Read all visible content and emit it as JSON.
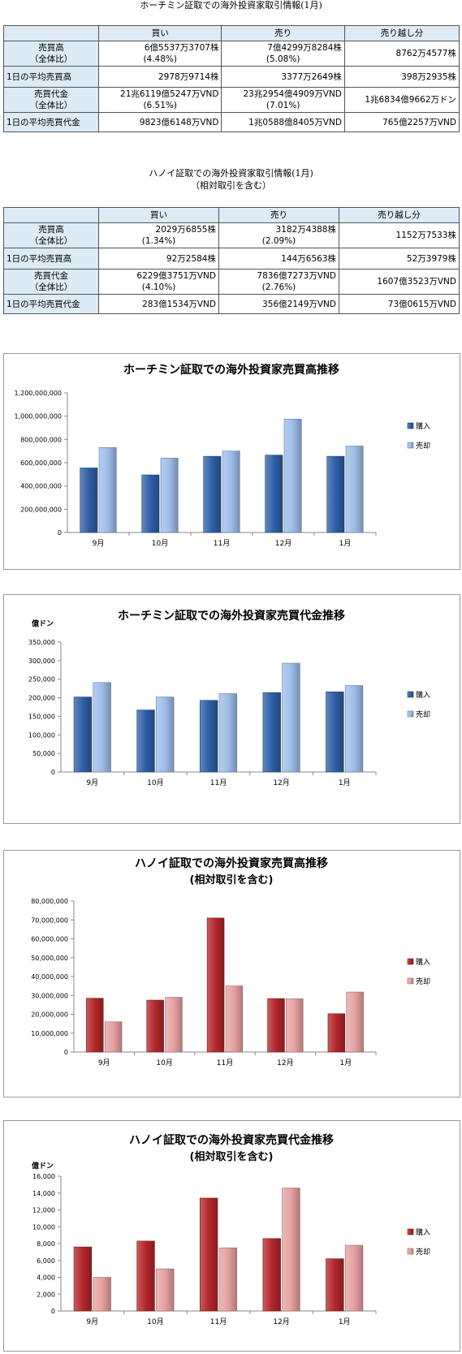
{
  "hcm_table": {
    "title": "ホーチミン証取での海外投資家取引情報(1月)",
    "headers": [
      "",
      "買い",
      "売り",
      "売り越し分"
    ],
    "rows": [
      {
        "label1": "売買高",
        "label2": "（全体比）",
        "buy": "6億5537万3707株",
        "buy_pct": "(4.48%)",
        "sell": "7億4299万8284株",
        "sell_pct": "(5.08%)",
        "net": "8762万4577株"
      },
      {
        "label1": "1日の平均売買高",
        "buy": "2978万9714株",
        "sell": "3377万2649株",
        "net": "398万2935株"
      },
      {
        "label1": "売買代金",
        "label2": "（全体比）",
        "buy": "21兆6119億5247万VND",
        "buy_pct": "(6.51%)",
        "sell": "23兆2954億4909万VND",
        "sell_pct": "(7.01%)",
        "net": "1兆6834億9662万ドン"
      },
      {
        "label1": "1日の平均売買代金",
        "buy": "9823億6148万VND",
        "sell": "1兆0588億8405万VND",
        "net": "765億2257万VND"
      }
    ]
  },
  "hn_table": {
    "title": "ハノイ証取での海外投資家取引情報(1月)",
    "subtitle": "（相対取引を含む）",
    "headers": [
      "",
      "買い",
      "売り",
      "売り越し分"
    ],
    "rows": [
      {
        "label1": "売買高",
        "label2": "（全体比）",
        "buy": "2029万6855株",
        "buy_pct": "(1.34%)",
        "sell": "3182万4388株",
        "sell_pct": "(2.09%)",
        "net": "1152万7533株"
      },
      {
        "label1": "1日の平均売買高",
        "buy": "92万2584株",
        "sell": "144万6563株",
        "net": "52万3979株"
      },
      {
        "label1": "売買代金",
        "label2": "（全体比）",
        "buy": "6229億3751万VND",
        "buy_pct": "(4.10%)",
        "sell": "7836億7273万VND",
        "sell_pct": "(2.76%)",
        "net": "1607億3523万VND"
      },
      {
        "label1": "1日の平均売買代金",
        "buy": "283億1534万VND",
        "sell": "356億2149万VND",
        "net": "73億0615万VND"
      }
    ]
  },
  "colors": {
    "buy_blue": "#2f5fa7",
    "sell_blue": "#9dbde9",
    "buy_red": "#b3262a",
    "sell_red": "#e6a1a1"
  },
  "chart_data": [
    {
      "type": "bar",
      "title": "ホーチミン証取での海外投資家売買高推移",
      "unit_label": "",
      "categories": [
        "9月",
        "10月",
        "11月",
        "12月",
        "1月"
      ],
      "series": [
        {
          "name": "購入",
          "values": [
            555000000,
            495000000,
            655000000,
            665000000,
            655000000
          ]
        },
        {
          "name": "売却",
          "values": [
            730000000,
            640000000,
            700000000,
            975000000,
            743000000
          ]
        }
      ],
      "yticks": [
        "0",
        "200,000,000",
        "400,000,000",
        "600,000,000",
        "800,000,000",
        "1,000,000,000",
        "1,200,000,000"
      ],
      "ylim": [
        0,
        1200000000
      ],
      "palette": "blue",
      "legend_position": "right"
    },
    {
      "type": "bar",
      "title": "ホーチミン証取での海外投資家売買代金推移",
      "unit_label": "億ドン",
      "categories": [
        "9月",
        "10月",
        "11月",
        "12月",
        "1月"
      ],
      "series": [
        {
          "name": "購入",
          "values": [
            202000,
            167000,
            193000,
            214000,
            216000
          ]
        },
        {
          "name": "売却",
          "values": [
            241000,
            202000,
            211000,
            293000,
            233000
          ]
        }
      ],
      "yticks": [
        "0",
        "50,000",
        "100,000",
        "150,000",
        "200,000",
        "250,000",
        "300,000",
        "350,000"
      ],
      "ylim": [
        0,
        350000
      ],
      "palette": "blue",
      "legend_position": "right"
    },
    {
      "type": "bar",
      "title": "ハノイ証取での海外投資家売買高推移",
      "subtitle": "(相対取引を含む)",
      "unit_label": "",
      "categories": [
        "9月",
        "10月",
        "11月",
        "12月",
        "1月"
      ],
      "series": [
        {
          "name": "購入",
          "values": [
            28500000,
            27500000,
            71000000,
            28300000,
            20300000
          ]
        },
        {
          "name": "売却",
          "values": [
            16000000,
            29000000,
            35000000,
            28200000,
            31800000
          ]
        }
      ],
      "yticks": [
        "0",
        "10,000,000",
        "20,000,000",
        "30,000,000",
        "40,000,000",
        "50,000,000",
        "60,000,000",
        "70,000,000",
        "80,000,000"
      ],
      "ylim": [
        0,
        80000000
      ],
      "palette": "red",
      "legend_position": "right"
    },
    {
      "type": "bar",
      "title": "ハノイ証取での海外投資家売買代金推移",
      "subtitle": "(相対取引を含む)",
      "unit_label": "億ドン",
      "categories": [
        "9月",
        "10月",
        "11月",
        "12月",
        "1月"
      ],
      "series": [
        {
          "name": "購入",
          "values": [
            7600,
            8300,
            13400,
            8600,
            6200
          ]
        },
        {
          "name": "売却",
          "values": [
            4000,
            5000,
            7500,
            14600,
            7800
          ]
        }
      ],
      "yticks": [
        "0",
        "2,000",
        "4,000",
        "6,000",
        "8,000",
        "10,000",
        "12,000",
        "14,000",
        "16,000"
      ],
      "ylim": [
        0,
        16000
      ],
      "palette": "red",
      "legend_position": "right"
    }
  ]
}
